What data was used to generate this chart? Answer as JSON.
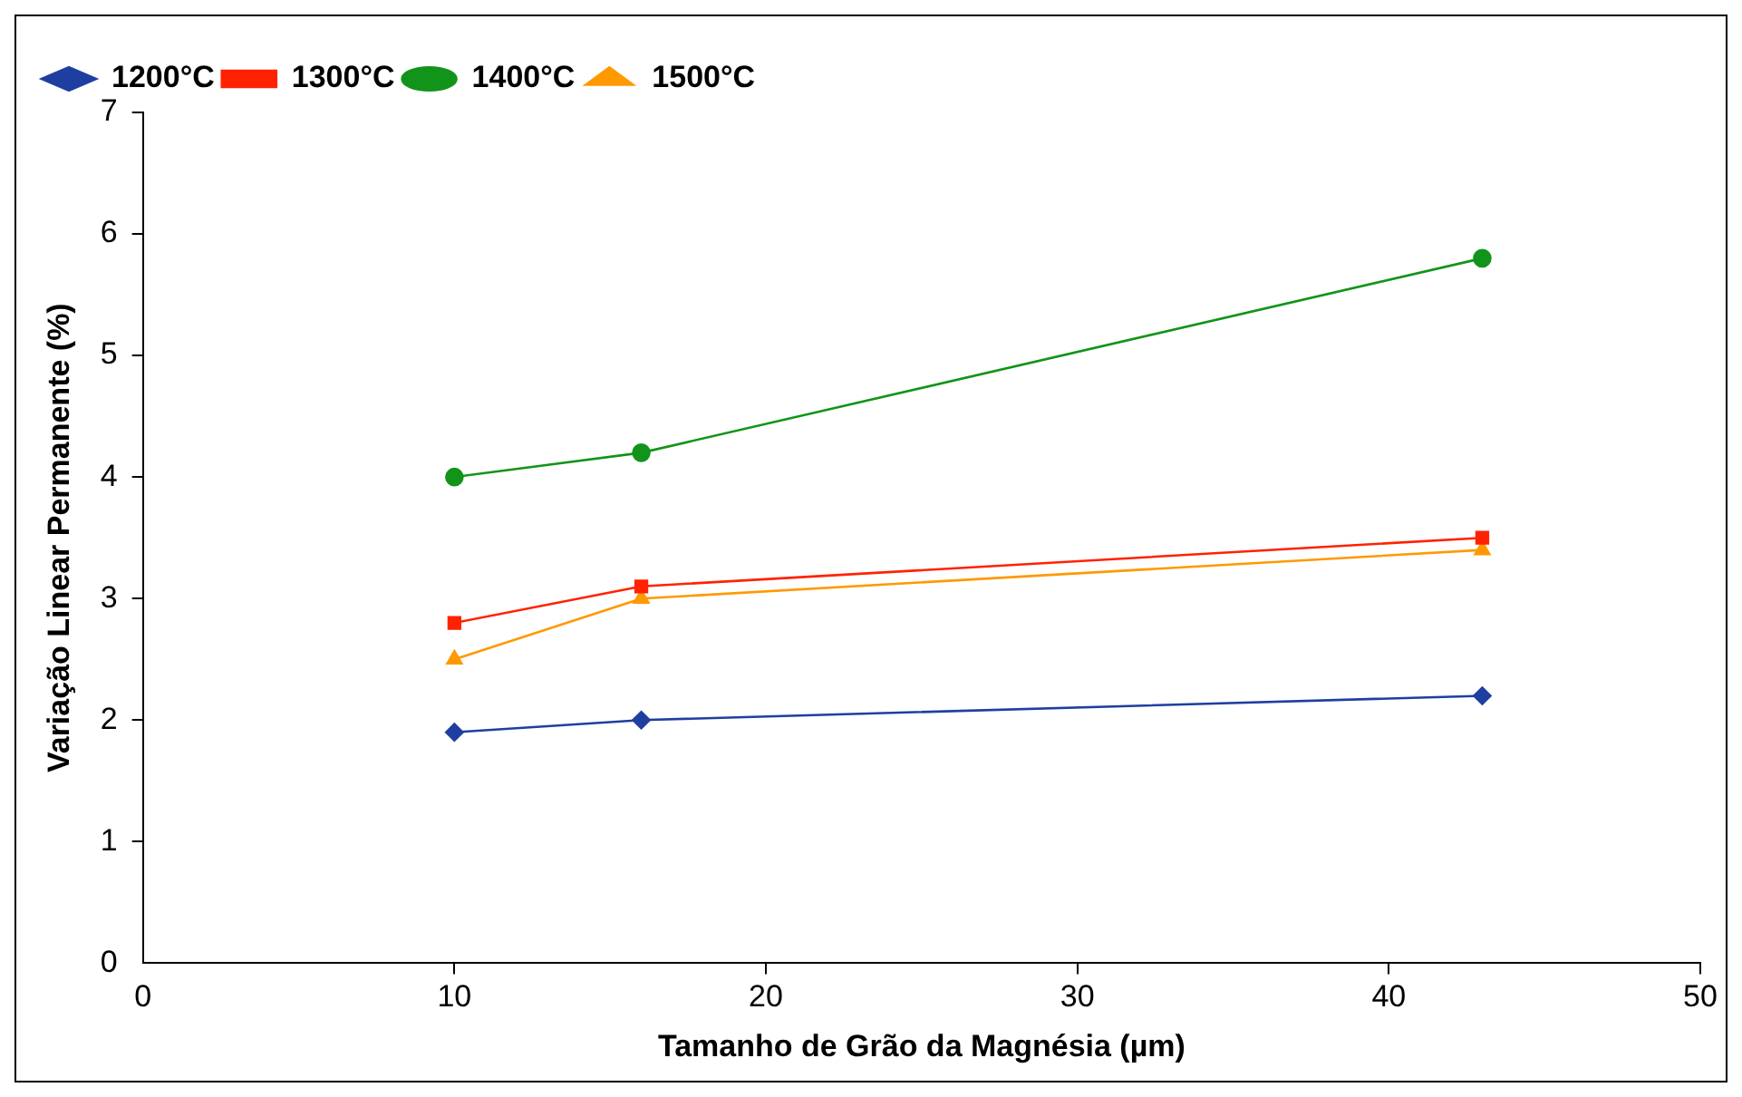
{
  "chart_data": {
    "type": "line",
    "xlabel": "Tamanho de Grão da Magnésia (µm)",
    "ylabel": "Variação Linear Permanente (%)",
    "x": [
      10,
      16,
      43
    ],
    "series": [
      {
        "name": "1200°C",
        "color": "#1f3fa0",
        "marker": "diamond",
        "values": [
          1.9,
          2.0,
          2.2
        ]
      },
      {
        "name": "1300°C",
        "color": "#ff2200",
        "marker": "square",
        "values": [
          2.8,
          3.1,
          3.5
        ]
      },
      {
        "name": "1400°C",
        "color": "#12941a",
        "marker": "circle",
        "values": [
          4.0,
          4.2,
          5.8
        ]
      },
      {
        "name": "1500°C",
        "color": "#ff9900",
        "marker": "triangle",
        "values": [
          2.5,
          3.0,
          3.4
        ]
      }
    ],
    "xlim": [
      0,
      50
    ],
    "xticks": [
      0,
      10,
      20,
      30,
      40,
      50
    ],
    "ylim": [
      0,
      7
    ],
    "yticks": [
      0,
      1,
      2,
      3,
      4,
      5,
      6,
      7
    ],
    "grid": false,
    "legend": "top left",
    "line_style": "solid"
  }
}
